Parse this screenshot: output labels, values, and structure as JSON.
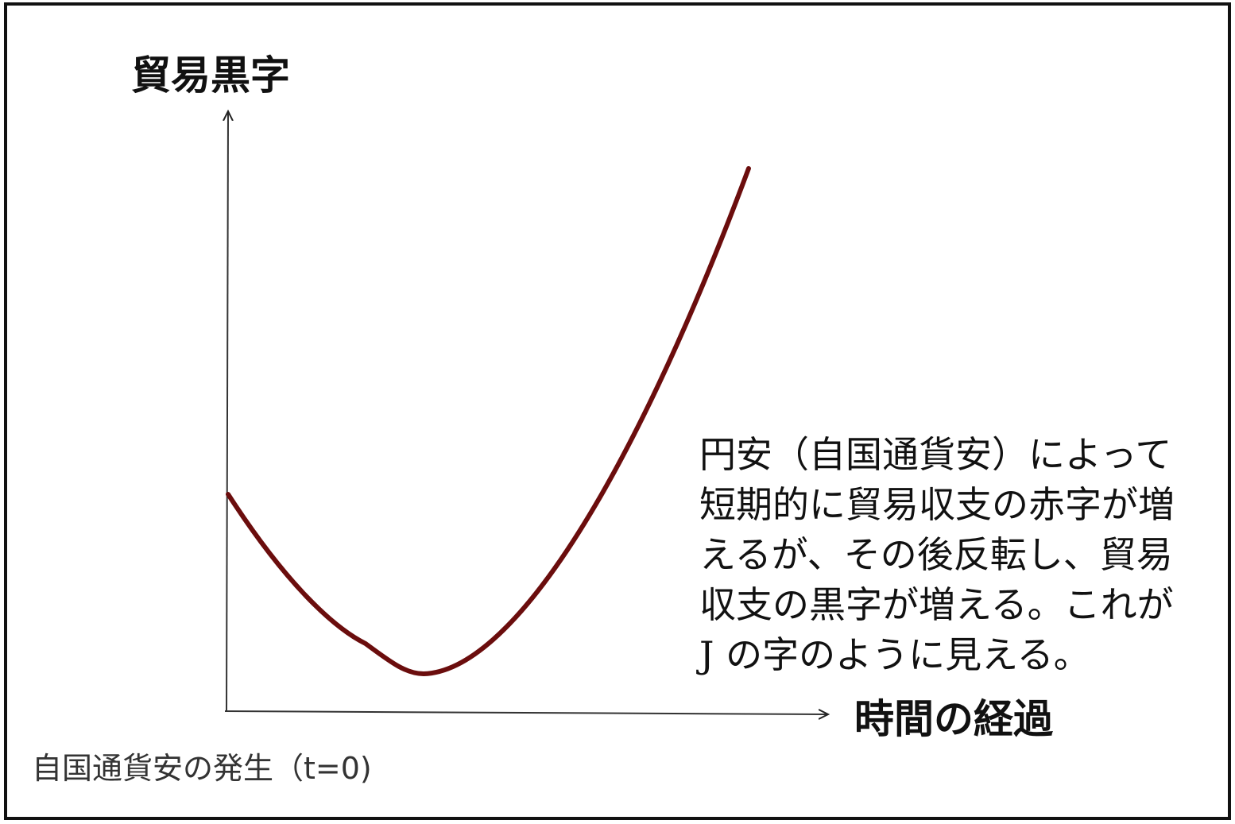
{
  "axes": {
    "y_label": "貿易黒字",
    "x_label": "時間の経過",
    "origin_label": "自国通貨安の発生（t=0)"
  },
  "annotation": {
    "lines": [
      "円安（自国通貨安）によって",
      "短期的に貿易収支の赤字が増",
      "えるが、その後反転し、貿易",
      "収支の黒字が増える。これが",
      "J の字のように見える。"
    ]
  }
}
